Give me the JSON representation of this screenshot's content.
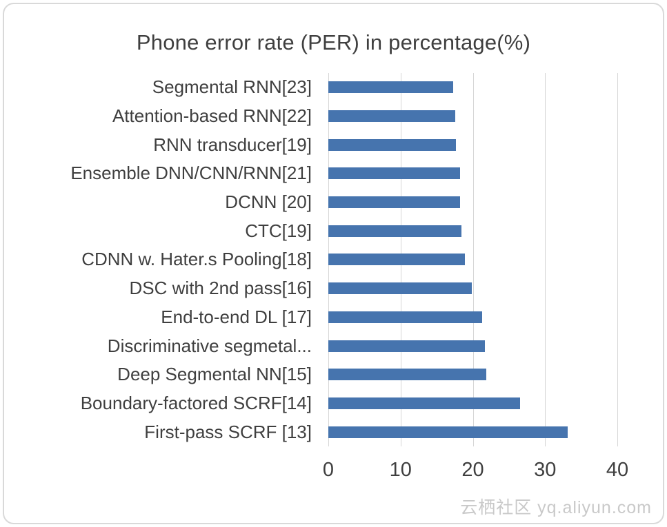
{
  "watermark": {
    "text": "云栖社区 yq.aliyun.com"
  },
  "chart_data": {
    "type": "bar",
    "orientation": "horizontal",
    "title": "Phone error rate (PER) in percentage(%)",
    "categories": [
      "Segmental RNN[23]",
      "Attention-based RNN[22]",
      "RNN transducer[19]",
      "Ensemble DNN/CNN/RNN[21]",
      "DCNN [20]",
      "CTC[19]",
      "CDNN w. Hater.s Pooling[18]",
      "DSC with 2nd pass[16]",
      "End-to-end DL [17]",
      "Discriminative segmetal...",
      "Deep Segmental NN[15]",
      "Boundary-factored SCRF[14]",
      "First-pass SCRF [13]"
    ],
    "values": [
      17.3,
      17.6,
      17.7,
      18.2,
      18.2,
      18.4,
      18.9,
      19.9,
      21.3,
      21.7,
      21.9,
      26.5,
      33.1
    ],
    "xticks": [
      0,
      10,
      20,
      30,
      40
    ],
    "xlim": [
      0,
      40
    ],
    "xlabel": "",
    "ylabel": "",
    "grid": true,
    "legend": false,
    "bar_color": "#4674ae",
    "gridline_color": "#d6d6d6",
    "text_color": "#3f3f3f"
  }
}
